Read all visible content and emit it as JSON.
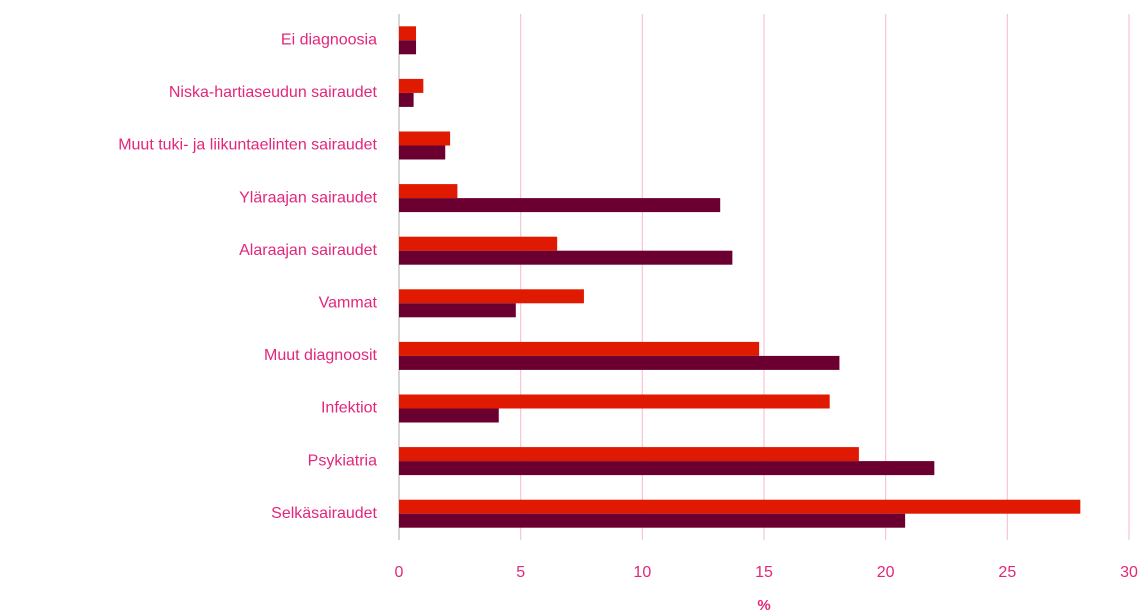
{
  "chart_data": {
    "type": "bar",
    "orientation": "horizontal",
    "x_label": "%",
    "categories": [
      "Ei diagnoosia",
      "Niska-hartiaseudun sairaudet",
      "Muut tuki- ja liikuntaelinten sairaudet",
      "Yläraajan sairaudet",
      "Alaraajan sairaudet",
      "Vammat",
      "Muut diagnoosit",
      "Infektiot",
      "Psykiatria",
      "Selkäsairaudet"
    ],
    "series": [
      {
        "color": "#e01a00",
        "values": [
          0.7,
          1.0,
          2.1,
          2.4,
          6.5,
          7.6,
          14.8,
          17.7,
          18.9,
          28.0
        ]
      },
      {
        "color": "#6b0030",
        "values": [
          0.7,
          0.6,
          1.9,
          13.2,
          13.7,
          4.8,
          18.1,
          4.1,
          22.0,
          20.8
        ]
      }
    ],
    "xlim": [
      0,
      30
    ],
    "xticks": [
      0,
      5,
      10,
      15,
      20,
      25,
      30
    ],
    "grid": true
  }
}
